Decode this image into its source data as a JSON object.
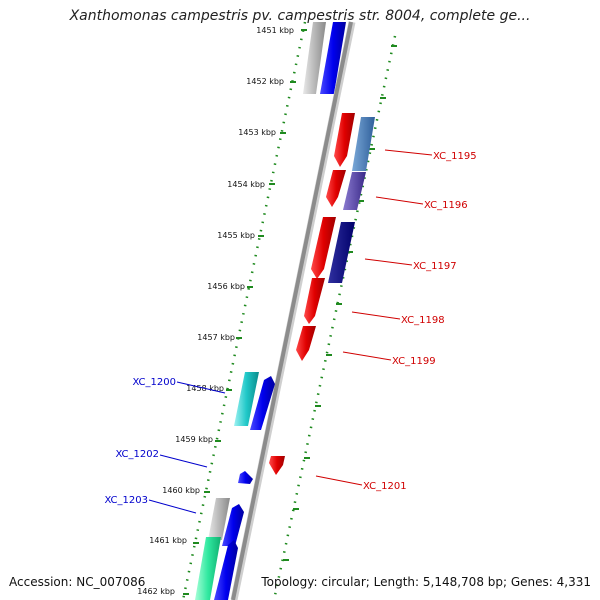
{
  "title": "Xanthomonas campestris pv. campestris str. 8004, complete ge...",
  "footer": {
    "accession": "Accession: NC_007086",
    "summary": "Topology: circular; Length: 5,148,708 bp; Genes: 4,331"
  },
  "colors": {
    "backbone": "#8c8c8c",
    "dots": "#1f8a1f",
    "red_label": "#d00000",
    "blue_label": "#0000cc"
  },
  "kbp_ticks": [
    "1451 kbp",
    "1452 kbp",
    "1453 kbp",
    "1454 kbp",
    "1455 kbp",
    "1456 kbp",
    "1457 kbp",
    "1458 kbp",
    "1459 kbp",
    "1460 kbp",
    "1461 kbp",
    "1462 kbp"
  ],
  "gene_labels": [
    {
      "text": "XC_1195",
      "color": "red"
    },
    {
      "text": "XC_1196",
      "color": "red"
    },
    {
      "text": "XC_1197",
      "color": "red"
    },
    {
      "text": "XC_1198",
      "color": "red"
    },
    {
      "text": "XC_1199",
      "color": "red"
    },
    {
      "text": "XC_1201",
      "color": "red"
    },
    {
      "text": "XC_1200",
      "color": "blue"
    },
    {
      "text": "XC_1202",
      "color": "blue"
    },
    {
      "text": "XC_1203",
      "color": "blue"
    }
  ]
}
